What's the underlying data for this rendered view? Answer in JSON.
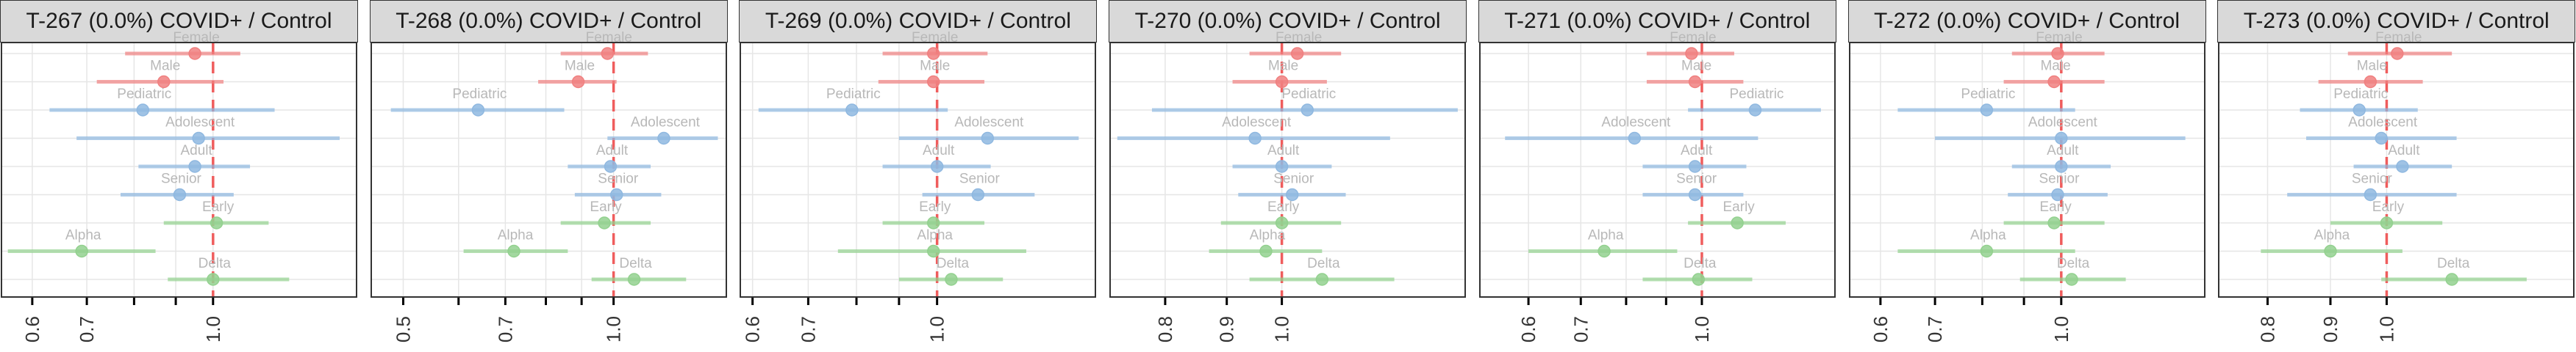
{
  "colors": {
    "Sex": "#f08080",
    "Age": "#8fb8e0",
    "Variant": "#93d18f",
    "reference": "#ef5d5d"
  },
  "row_labels": [
    "Female",
    "Male",
    "Pediatric",
    "Adolescent",
    "Adult",
    "Senior",
    "Early",
    "Alpha",
    "Delta"
  ],
  "chart_data": [
    {
      "type": "scatter",
      "title": "T-267 (0.0%) COVID+ / Control",
      "xscale": "log",
      "xlim": [
        0.55,
        1.5
      ],
      "xticks": [
        {
          "value": 0.6,
          "label": "0.6"
        },
        {
          "value": 0.7,
          "label": "0.7"
        },
        {
          "value": 0.8,
          "label": ""
        },
        {
          "value": 0.9,
          "label": ""
        },
        {
          "value": 1.0,
          "label": "1.0"
        }
      ],
      "points": [
        {
          "label": "Female",
          "group": "Sex",
          "est": 0.95,
          "lo": 0.78,
          "hi": 1.08
        },
        {
          "label": "Male",
          "group": "Sex",
          "est": 0.87,
          "lo": 0.72,
          "hi": 1.03
        },
        {
          "label": "Pediatric",
          "group": "Age",
          "est": 0.82,
          "lo": 0.63,
          "hi": 1.19
        },
        {
          "label": "Adolescent",
          "group": "Age",
          "est": 0.96,
          "lo": 0.68,
          "hi": 1.43
        },
        {
          "label": "Adult",
          "group": "Age",
          "est": 0.95,
          "lo": 0.81,
          "hi": 1.11
        },
        {
          "label": "Senior",
          "group": "Age",
          "est": 0.91,
          "lo": 0.77,
          "hi": 1.06
        },
        {
          "label": "Early",
          "group": "Variant",
          "est": 1.01,
          "lo": 0.87,
          "hi": 1.17
        },
        {
          "label": "Alpha",
          "group": "Variant",
          "est": 0.69,
          "lo": 0.56,
          "hi": 0.85
        },
        {
          "label": "Delta",
          "group": "Variant",
          "est": 1.0,
          "lo": 0.88,
          "hi": 1.24
        }
      ]
    },
    {
      "type": "scatter",
      "title": "T-268 (0.0%) COVID+ / Control",
      "xscale": "log",
      "xlim": [
        0.45,
        1.45
      ],
      "xticks": [
        {
          "value": 0.5,
          "label": "0.5"
        },
        {
          "value": 0.6,
          "label": ""
        },
        {
          "value": 0.7,
          "label": "0.7"
        },
        {
          "value": 0.8,
          "label": ""
        },
        {
          "value": 0.9,
          "label": ""
        },
        {
          "value": 1.0,
          "label": "1.0"
        }
      ],
      "points": [
        {
          "label": "Female",
          "group": "Sex",
          "est": 0.98,
          "lo": 0.84,
          "hi": 1.12
        },
        {
          "label": "Male",
          "group": "Sex",
          "est": 0.89,
          "lo": 0.78,
          "hi": 1.01
        },
        {
          "label": "Pediatric",
          "group": "Age",
          "est": 0.64,
          "lo": 0.48,
          "hi": 0.85
        },
        {
          "label": "Adolescent",
          "group": "Age",
          "est": 1.18,
          "lo": 0.98,
          "hi": 1.41
        },
        {
          "label": "Adult",
          "group": "Age",
          "est": 0.99,
          "lo": 0.86,
          "hi": 1.13
        },
        {
          "label": "Senior",
          "group": "Age",
          "est": 1.01,
          "lo": 0.88,
          "hi": 1.17
        },
        {
          "label": "Early",
          "group": "Variant",
          "est": 0.97,
          "lo": 0.84,
          "hi": 1.13
        },
        {
          "label": "Alpha",
          "group": "Variant",
          "est": 0.72,
          "lo": 0.61,
          "hi": 0.86
        },
        {
          "label": "Delta",
          "group": "Variant",
          "est": 1.07,
          "lo": 0.93,
          "hi": 1.27
        }
      ]
    },
    {
      "type": "scatter",
      "title": "T-269 (0.0%) COVID+ / Control",
      "xscale": "log",
      "xlim": [
        0.58,
        1.55
      ],
      "xticks": [
        {
          "value": 0.6,
          "label": "0.6"
        },
        {
          "value": 0.7,
          "label": "0.7"
        },
        {
          "value": 0.8,
          "label": ""
        },
        {
          "value": 0.9,
          "label": ""
        },
        {
          "value": 1.0,
          "label": "1.0"
        }
      ],
      "points": [
        {
          "label": "Female",
          "group": "Sex",
          "est": 0.99,
          "lo": 0.86,
          "hi": 1.15
        },
        {
          "label": "Male",
          "group": "Sex",
          "est": 0.99,
          "lo": 0.85,
          "hi": 1.14
        },
        {
          "label": "Pediatric",
          "group": "Age",
          "est": 0.79,
          "lo": 0.61,
          "hi": 1.03
        },
        {
          "label": "Adolescent",
          "group": "Age",
          "est": 1.15,
          "lo": 0.9,
          "hi": 1.48
        },
        {
          "label": "Adult",
          "group": "Age",
          "est": 1.0,
          "lo": 0.86,
          "hi": 1.16
        },
        {
          "label": "Senior",
          "group": "Age",
          "est": 1.12,
          "lo": 0.96,
          "hi": 1.31
        },
        {
          "label": "Early",
          "group": "Variant",
          "est": 0.99,
          "lo": 0.86,
          "hi": 1.14
        },
        {
          "label": "Alpha",
          "group": "Variant",
          "est": 0.99,
          "lo": 0.76,
          "hi": 1.28
        },
        {
          "label": "Delta",
          "group": "Variant",
          "est": 1.04,
          "lo": 0.9,
          "hi": 1.2
        }
      ]
    },
    {
      "type": "scatter",
      "title": "T-270 (0.0%) COVID+ / Control",
      "xscale": "log",
      "xlim": [
        0.72,
        1.42
      ],
      "xticks": [
        {
          "value": 0.8,
          "label": "0.8"
        },
        {
          "value": 0.9,
          "label": "0.9"
        },
        {
          "value": 1.0,
          "label": "1.0"
        }
      ],
      "points": [
        {
          "label": "Female",
          "group": "Sex",
          "est": 1.03,
          "lo": 0.94,
          "hi": 1.12
        },
        {
          "label": "Male",
          "group": "Sex",
          "est": 1.0,
          "lo": 0.91,
          "hi": 1.09
        },
        {
          "label": "Pediatric",
          "group": "Age",
          "est": 1.05,
          "lo": 0.78,
          "hi": 1.4
        },
        {
          "label": "Adolescent",
          "group": "Age",
          "est": 0.95,
          "lo": 0.73,
          "hi": 1.23
        },
        {
          "label": "Adult",
          "group": "Age",
          "est": 1.0,
          "lo": 0.91,
          "hi": 1.1
        },
        {
          "label": "Senior",
          "group": "Age",
          "est": 1.02,
          "lo": 0.92,
          "hi": 1.13
        },
        {
          "label": "Early",
          "group": "Variant",
          "est": 1.0,
          "lo": 0.89,
          "hi": 1.12
        },
        {
          "label": "Alpha",
          "group": "Variant",
          "est": 0.97,
          "lo": 0.87,
          "hi": 1.08
        },
        {
          "label": "Delta",
          "group": "Variant",
          "est": 1.08,
          "lo": 0.94,
          "hi": 1.24
        }
      ]
    },
    {
      "type": "scatter",
      "title": "T-271 (0.0%) COVID+ / Control",
      "xscale": "log",
      "xlim": [
        0.52,
        1.48
      ],
      "xticks": [
        {
          "value": 0.6,
          "label": "0.6"
        },
        {
          "value": 0.7,
          "label": "0.7"
        },
        {
          "value": 0.8,
          "label": ""
        },
        {
          "value": 0.9,
          "label": ""
        },
        {
          "value": 1.0,
          "label": "1.0"
        }
      ],
      "points": [
        {
          "label": "Female",
          "group": "Sex",
          "est": 0.97,
          "lo": 0.85,
          "hi": 1.1
        },
        {
          "label": "Male",
          "group": "Sex",
          "est": 0.98,
          "lo": 0.85,
          "hi": 1.13
        },
        {
          "label": "Pediatric",
          "group": "Age",
          "est": 1.17,
          "lo": 0.96,
          "hi": 1.42
        },
        {
          "label": "Adolescent",
          "group": "Age",
          "est": 0.82,
          "lo": 0.56,
          "hi": 1.18
        },
        {
          "label": "Adult",
          "group": "Age",
          "est": 0.98,
          "lo": 0.84,
          "hi": 1.14
        },
        {
          "label": "Senior",
          "group": "Age",
          "est": 0.98,
          "lo": 0.84,
          "hi": 1.13
        },
        {
          "label": "Early",
          "group": "Variant",
          "est": 1.11,
          "lo": 0.96,
          "hi": 1.28
        },
        {
          "label": "Alpha",
          "group": "Variant",
          "est": 0.75,
          "lo": 0.6,
          "hi": 0.93
        },
        {
          "label": "Delta",
          "group": "Variant",
          "est": 0.99,
          "lo": 0.84,
          "hi": 1.16
        }
      ]
    },
    {
      "type": "scatter",
      "title": "T-272 (0.0%) COVID+ / Control",
      "xscale": "log",
      "xlim": [
        0.55,
        1.5
      ],
      "xticks": [
        {
          "value": 0.6,
          "label": "0.6"
        },
        {
          "value": 0.7,
          "label": "0.7"
        },
        {
          "value": 0.8,
          "label": ""
        },
        {
          "value": 0.9,
          "label": ""
        },
        {
          "value": 1.0,
          "label": "1.0"
        }
      ],
      "points": [
        {
          "label": "Female",
          "group": "Sex",
          "est": 0.99,
          "lo": 0.87,
          "hi": 1.13
        },
        {
          "label": "Male",
          "group": "Sex",
          "est": 0.98,
          "lo": 0.85,
          "hi": 1.13
        },
        {
          "label": "Pediatric",
          "group": "Age",
          "est": 0.81,
          "lo": 0.63,
          "hi": 1.04
        },
        {
          "label": "Adolescent",
          "group": "Age",
          "est": 1.0,
          "lo": 0.7,
          "hi": 1.42
        },
        {
          "label": "Adult",
          "group": "Age",
          "est": 1.0,
          "lo": 0.87,
          "hi": 1.15
        },
        {
          "label": "Senior",
          "group": "Age",
          "est": 0.99,
          "lo": 0.86,
          "hi": 1.14
        },
        {
          "label": "Early",
          "group": "Variant",
          "est": 0.98,
          "lo": 0.85,
          "hi": 1.13
        },
        {
          "label": "Alpha",
          "group": "Variant",
          "est": 0.81,
          "lo": 0.63,
          "hi": 1.04
        },
        {
          "label": "Delta",
          "group": "Variant",
          "est": 1.03,
          "lo": 0.89,
          "hi": 1.2
        }
      ]
    },
    {
      "type": "scatter",
      "title": "T-273 (0.0%) COVID+ / Control",
      "xscale": "log",
      "xlim": [
        0.73,
        1.42
      ],
      "xticks": [
        {
          "value": 0.8,
          "label": "0.8"
        },
        {
          "value": 0.9,
          "label": "0.9"
        },
        {
          "value": 1.0,
          "label": "1.0"
        }
      ],
      "points": [
        {
          "label": "Female",
          "group": "Sex",
          "est": 1.02,
          "lo": 0.93,
          "hi": 1.13
        },
        {
          "label": "Male",
          "group": "Sex",
          "est": 0.97,
          "lo": 0.88,
          "hi": 1.07
        },
        {
          "label": "Pediatric",
          "group": "Age",
          "est": 0.95,
          "lo": 0.85,
          "hi": 1.06
        },
        {
          "label": "Adolescent",
          "group": "Age",
          "est": 0.99,
          "lo": 0.86,
          "hi": 1.14
        },
        {
          "label": "Adult",
          "group": "Age",
          "est": 1.03,
          "lo": 0.94,
          "hi": 1.13
        },
        {
          "label": "Senior",
          "group": "Age",
          "est": 0.97,
          "lo": 0.83,
          "hi": 1.14
        },
        {
          "label": "Early",
          "group": "Variant",
          "est": 1.0,
          "lo": 0.9,
          "hi": 1.11
        },
        {
          "label": "Alpha",
          "group": "Variant",
          "est": 0.9,
          "lo": 0.79,
          "hi": 1.03
        },
        {
          "label": "Delta",
          "group": "Variant",
          "est": 1.13,
          "lo": 0.99,
          "hi": 1.3
        }
      ]
    }
  ]
}
